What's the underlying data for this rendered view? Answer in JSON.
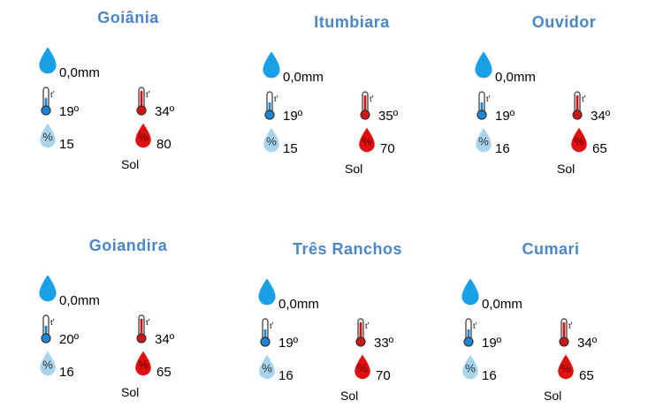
{
  "colors": {
    "title": "#4a86c8",
    "rain_drop": "#1aa0e6",
    "humidity_min": "#a9d4f0",
    "humidity_max": "#e01010",
    "thermo_min": "#1a86d6",
    "thermo_max": "#d21414"
  },
  "icons": [
    "rain-drop-icon",
    "thermometer-min-icon",
    "thermometer-max-icon",
    "humidity-min-icon",
    "humidity-max-icon"
  ],
  "cities": [
    {
      "name": "Goiânia",
      "rain": "0,0mm",
      "temp_min": "19º",
      "temp_max": "34º",
      "humidity_min": "15",
      "humidity_max": "80",
      "sky": "Sol"
    },
    {
      "name": "Itumbiara",
      "rain": "0,0mm",
      "temp_min": "19º",
      "temp_max": "35º",
      "humidity_min": "15",
      "humidity_max": "70",
      "sky": "Sol"
    },
    {
      "name": "Ouvidor",
      "rain": "0,0mm",
      "temp_min": "19º",
      "temp_max": "34º",
      "humidity_min": "16",
      "humidity_max": "65",
      "sky": "Sol"
    },
    {
      "name": "Goiandira",
      "rain": "0,0mm",
      "temp_min": "20º",
      "temp_max": "34º",
      "humidity_min": "16",
      "humidity_max": "65",
      "sky": "Sol"
    },
    {
      "name": "Três Ranchos",
      "rain": "0,0mm",
      "temp_min": "19º",
      "temp_max": "33º",
      "humidity_min": "16",
      "humidity_max": "70",
      "sky": "Sol"
    },
    {
      "name": "Cumari",
      "rain": "0,0mm",
      "temp_min": "19º",
      "temp_max": "34º",
      "humidity_min": "16",
      "humidity_max": "65",
      "sky": "Sol"
    }
  ]
}
